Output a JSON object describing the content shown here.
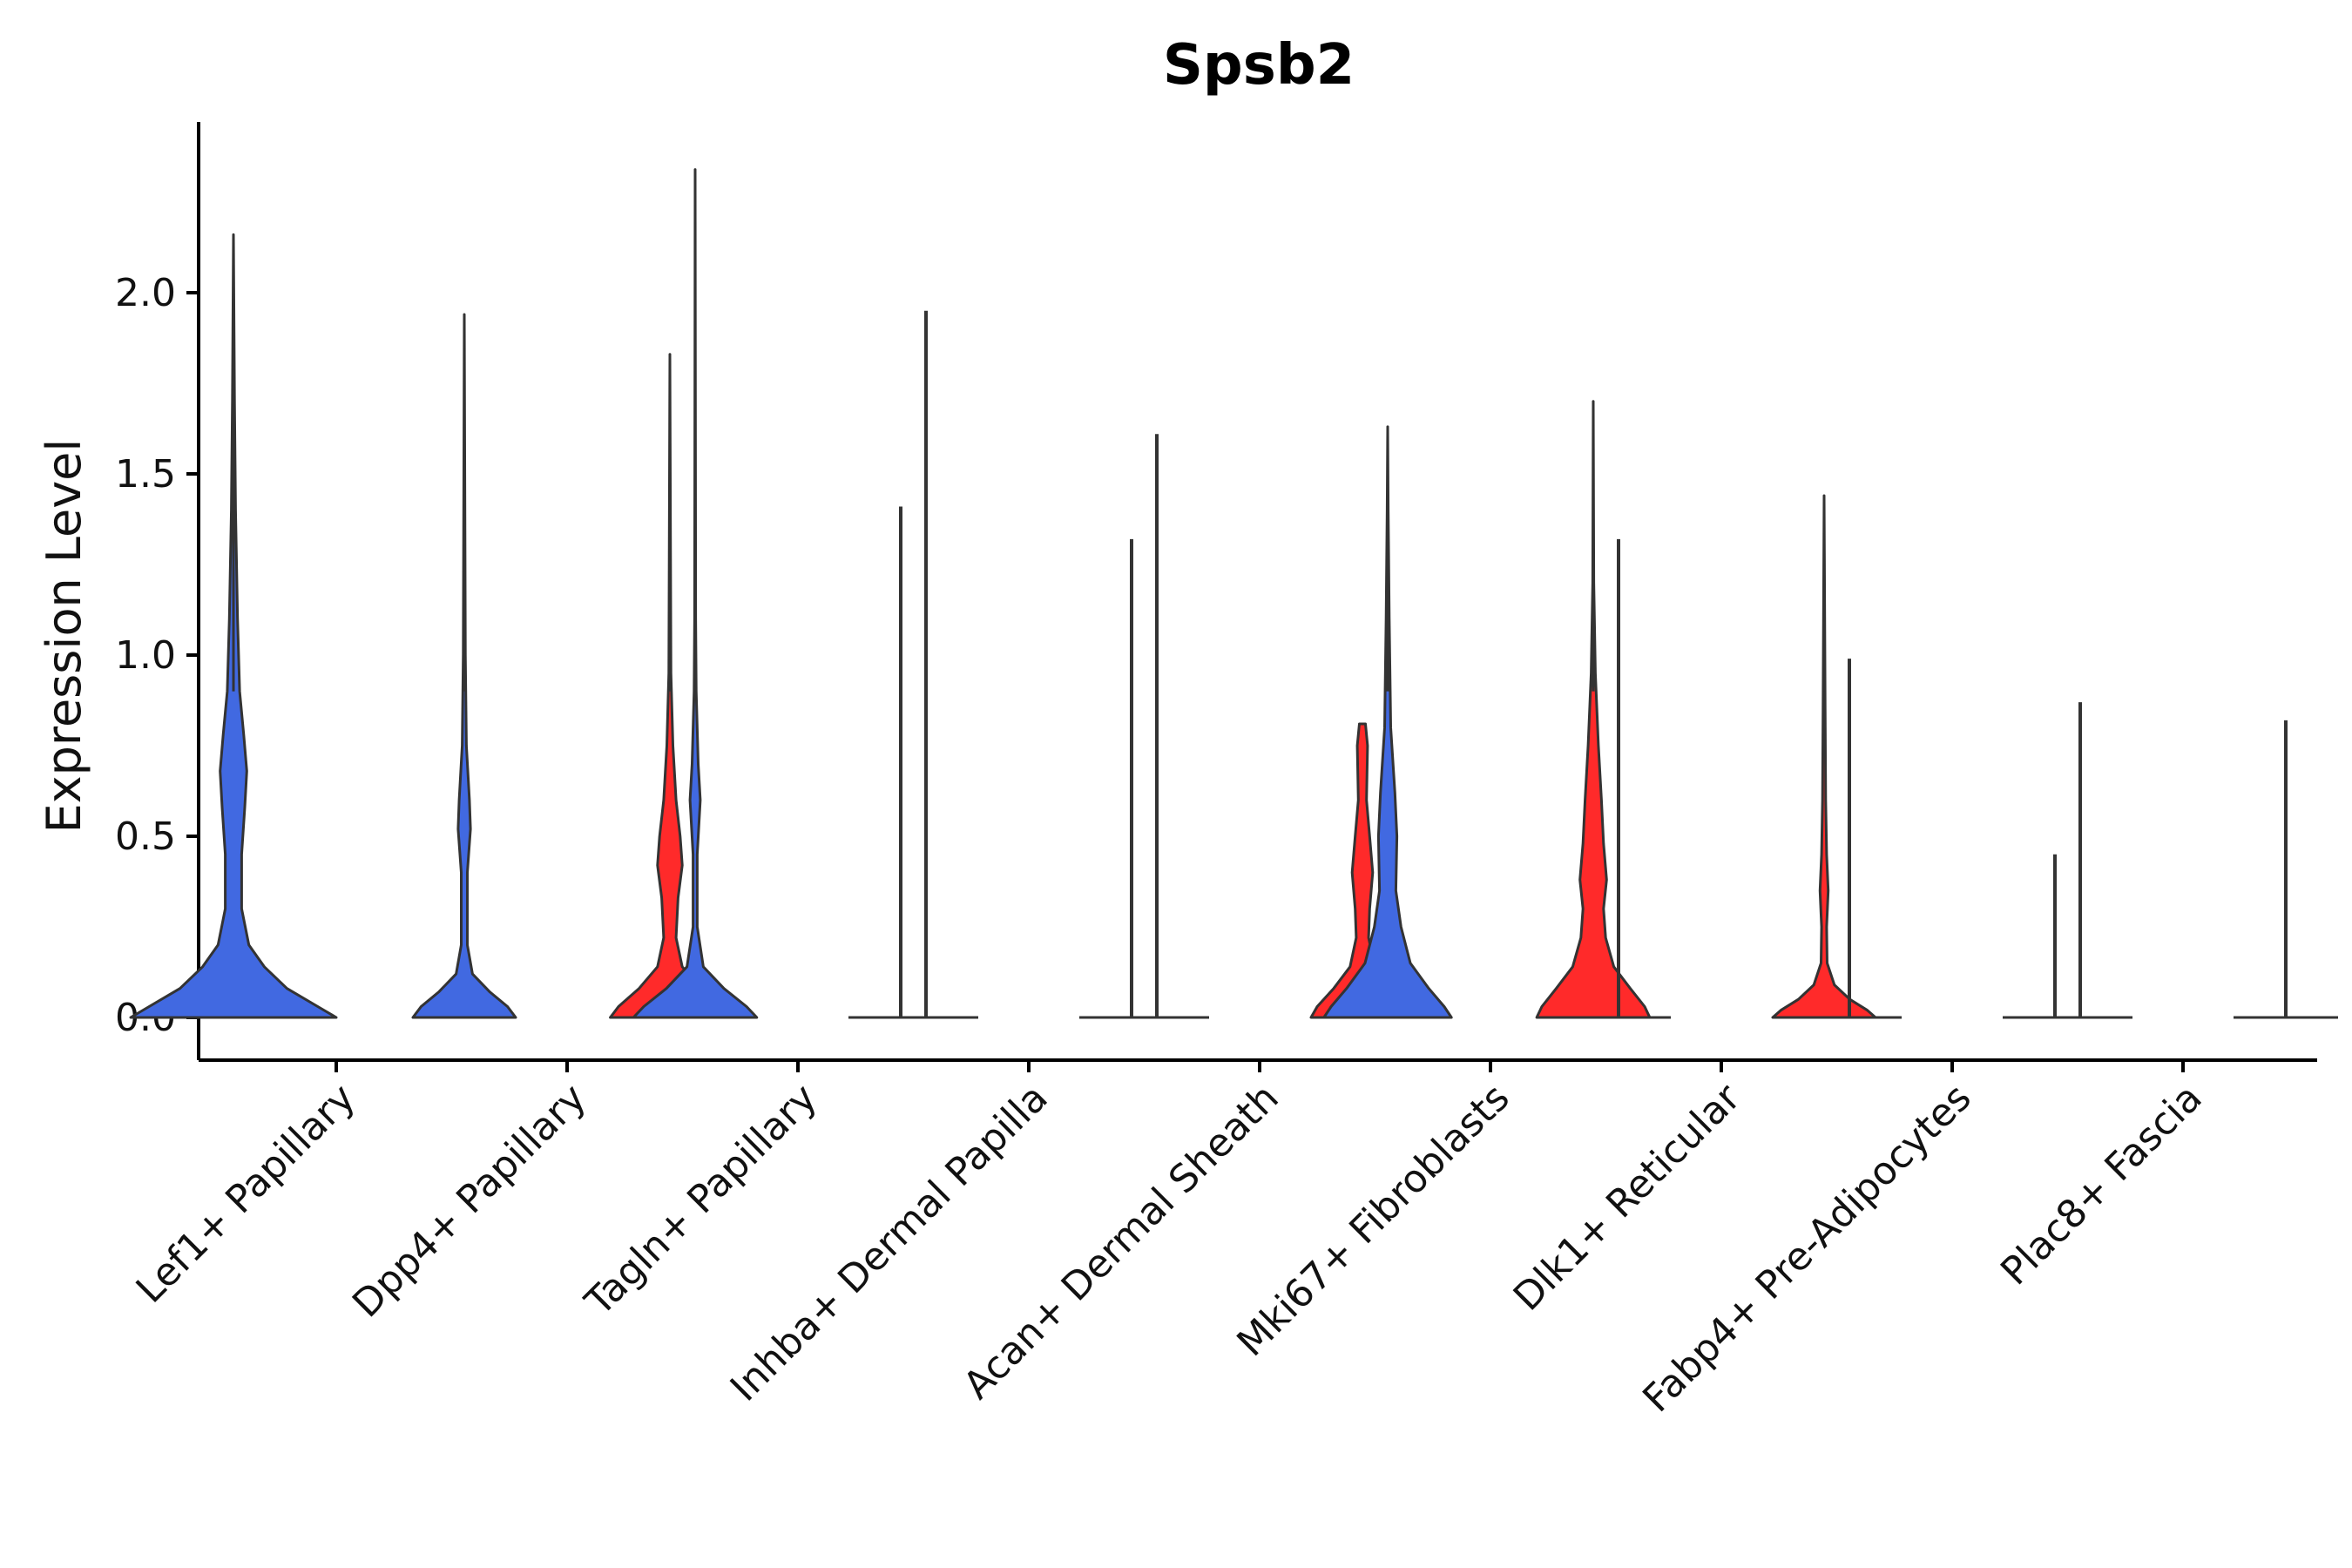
{
  "chart_data": {
    "type": "violin",
    "title": "Spsb2",
    "xlabel": "",
    "ylabel": "Expression Level",
    "ylim": [
      -0.12,
      2.45
    ],
    "yticks": [
      "0.0",
      "0.5",
      "1.0",
      "1.5",
      "2.0"
    ],
    "ytick_values": [
      0.0,
      0.5,
      1.0,
      1.5,
      2.0
    ],
    "colors": {
      "group_a": "#4169E1",
      "group_b": "#FF2A2A",
      "line": "#333333"
    },
    "categories": [
      "Lef1+ Papillary",
      "Dpp4+ Papillary",
      "Tagln+ Papillary",
      "Inhba+ Dermal Papilla",
      "Acan+ Dermal Sheath",
      "Mki67+ Fibroblasts",
      "Dlk1+ Reticular",
      "Fabp4+ Pre-Adipocytes",
      "Plac8+ Fascia"
    ],
    "series": [
      {
        "name": "group_a",
        "color": "#4169E1",
        "max_values": [
          2.16,
          1.94,
          2.34,
          1.95,
          1.61,
          1.63,
          1.32,
          0.99,
          0.87
        ],
        "density_peak": [
          0.0,
          0.0,
          0.0,
          0.0,
          0.0,
          0.0,
          0.0,
          0.0,
          0.0
        ],
        "filled": [
          true,
          true,
          true,
          false,
          false,
          true,
          false,
          false,
          false
        ]
      },
      {
        "name": "group_b",
        "color": "#FF2A2A",
        "max_values": [
          null,
          1.83,
          1.41,
          1.32,
          0.81,
          1.7,
          1.44,
          0.45,
          0.82
        ],
        "filled": [
          false,
          true,
          false,
          false,
          true,
          true,
          true,
          false,
          false
        ]
      }
    ]
  }
}
